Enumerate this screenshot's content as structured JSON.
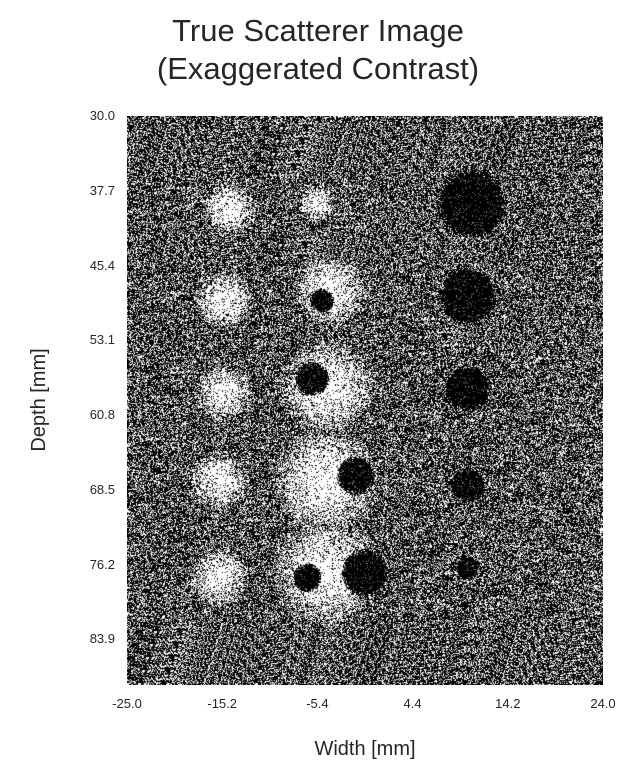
{
  "chart_data": {
    "type": "heatmap",
    "title_lines": [
      "True Scatterer Image",
      "(Exaggerated Contrast)"
    ],
    "xlabel": "Width [mm]",
    "ylabel": "Depth [mm]",
    "xlim": [
      -25.0,
      24.0
    ],
    "ylim": [
      30.0,
      88.6
    ],
    "x_ticks": [
      "-25.0",
      "-15.2",
      "-5.4",
      "4.4",
      "14.2",
      "24.0"
    ],
    "y_ticks": [
      "30.0",
      "37.7",
      "45.4",
      "53.1",
      "60.8",
      "68.5",
      "76.2",
      "83.9"
    ],
    "colormap": [
      "#000000",
      "#ffffff"
    ],
    "background": "speckle",
    "bright_regions": [
      {
        "x": -14.5,
        "y": 39.5,
        "r": 2.2
      },
      {
        "x": -15.0,
        "y": 49.0,
        "r": 2.4
      },
      {
        "x": -15.0,
        "y": 58.5,
        "r": 2.4
      },
      {
        "x": -15.5,
        "y": 67.5,
        "r": 2.5
      },
      {
        "x": -15.5,
        "y": 77.5,
        "r": 2.5
      },
      {
        "x": -5.5,
        "y": 39.0,
        "r": 1.5
      },
      {
        "x": -4.0,
        "y": 48.0,
        "r": 3.0
      },
      {
        "x": -4.5,
        "y": 58.0,
        "r": 4.0
      },
      {
        "x": -4.5,
        "y": 67.5,
        "r": 4.5
      },
      {
        "x": -4.5,
        "y": 77.0,
        "r": 4.5
      }
    ],
    "dark_regions": [
      {
        "x": 10.5,
        "y": 39.0,
        "r": 3.0
      },
      {
        "x": 10.0,
        "y": 48.5,
        "r": 2.5
      },
      {
        "x": 10.0,
        "y": 58.0,
        "r": 2.0
      },
      {
        "x": 10.0,
        "y": 68.0,
        "r": 1.5
      },
      {
        "x": 10.0,
        "y": 76.5,
        "r": 1.0
      },
      {
        "x": -6.0,
        "y": 57.0,
        "r": 1.4
      },
      {
        "x": -1.5,
        "y": 67.0,
        "r": 1.6
      },
      {
        "x": -6.5,
        "y": 77.5,
        "r": 1.2
      },
      {
        "x": -0.5,
        "y": 77.0,
        "r": 2.0
      },
      {
        "x": -5.0,
        "y": 49.0,
        "r": 1.0
      }
    ]
  }
}
